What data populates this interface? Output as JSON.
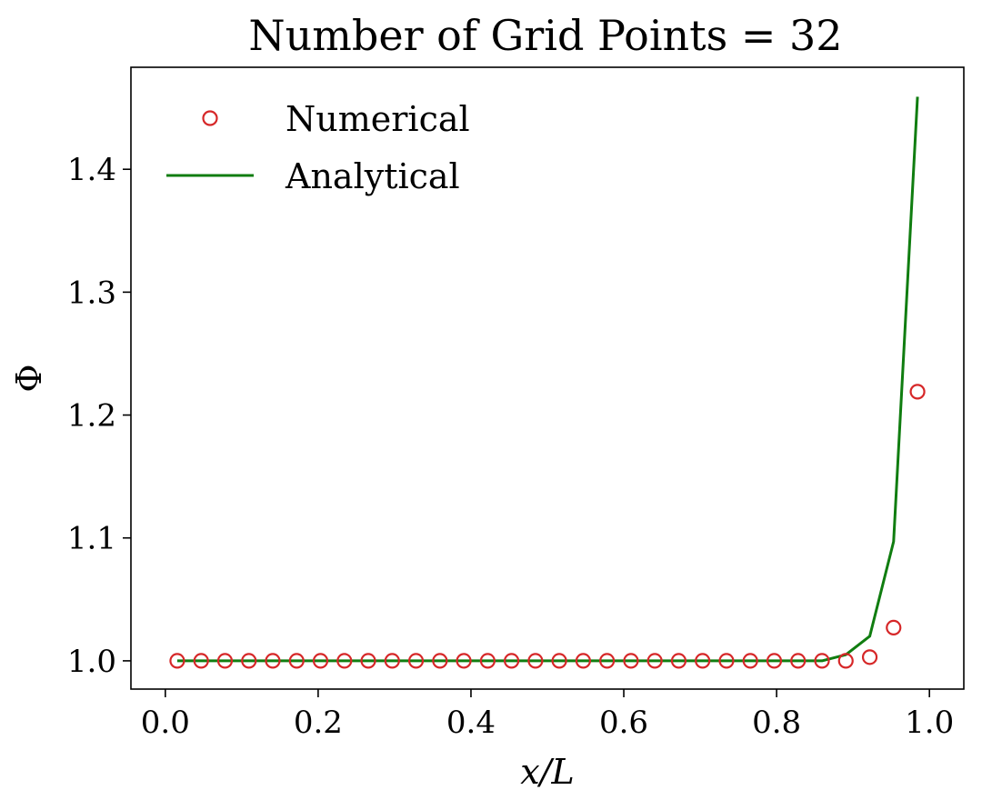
{
  "chart_data": {
    "type": "line",
    "title": "Number of Grid Points = 32",
    "xlabel": "x/L",
    "ylabel": "Φ",
    "xlim": [
      -0.045,
      1.045
    ],
    "ylim": [
      0.977,
      1.483
    ],
    "xticks": [
      0.0,
      0.2,
      0.4,
      0.6,
      0.8,
      1.0
    ],
    "xtick_labels": [
      "0.0",
      "0.2",
      "0.4",
      "0.6",
      "0.8",
      "1.0"
    ],
    "yticks": [
      1.0,
      1.1,
      1.2,
      1.3,
      1.4
    ],
    "ytick_labels": [
      "1.0",
      "1.1",
      "1.2",
      "1.3",
      "1.4"
    ],
    "grid": false,
    "legend": "upper-left",
    "colors": {
      "numerical": "#d62728",
      "analytical": "#107d10"
    },
    "series": [
      {
        "name": "Numerical",
        "type": "scatter",
        "marker": "circle-open",
        "x": [
          0.0156,
          0.0469,
          0.0781,
          0.1094,
          0.1406,
          0.1719,
          0.2031,
          0.2344,
          0.2656,
          0.2969,
          0.3281,
          0.3594,
          0.3906,
          0.4219,
          0.4531,
          0.4844,
          0.5156,
          0.5469,
          0.5781,
          0.6094,
          0.6406,
          0.6719,
          0.7031,
          0.7344,
          0.7656,
          0.7969,
          0.8281,
          0.8594,
          0.8906,
          0.9219,
          0.9531,
          0.9844
        ],
        "y": [
          1.0,
          1.0,
          1.0,
          1.0,
          1.0,
          1.0,
          1.0,
          1.0,
          1.0,
          1.0,
          1.0,
          1.0,
          1.0,
          1.0,
          1.0,
          1.0,
          1.0,
          1.0,
          1.0,
          1.0,
          1.0,
          1.0,
          1.0,
          1.0,
          1.0,
          1.0,
          1.0,
          1.0,
          1.0,
          1.003,
          1.027,
          1.219
        ]
      },
      {
        "name": "Analytical",
        "type": "line",
        "x": [
          0.0156,
          0.0469,
          0.0781,
          0.1094,
          0.1406,
          0.1719,
          0.2031,
          0.2344,
          0.2656,
          0.2969,
          0.3281,
          0.3594,
          0.3906,
          0.4219,
          0.4531,
          0.4844,
          0.5156,
          0.5469,
          0.5781,
          0.6094,
          0.6406,
          0.6719,
          0.7031,
          0.7344,
          0.7656,
          0.7969,
          0.8281,
          0.8594,
          0.8906,
          0.9219,
          0.9531,
          0.9844
        ],
        "y": [
          1.0,
          1.0,
          1.0,
          1.0,
          1.0,
          1.0,
          1.0,
          1.0,
          1.0,
          1.0,
          1.0,
          1.0,
          1.0,
          1.0,
          1.0,
          1.0,
          1.0,
          1.0,
          1.0,
          1.0,
          1.0,
          1.0,
          1.0,
          1.0,
          1.0,
          1.0,
          1.0,
          1.0,
          1.005,
          1.02,
          1.097,
          1.459
        ]
      }
    ]
  }
}
